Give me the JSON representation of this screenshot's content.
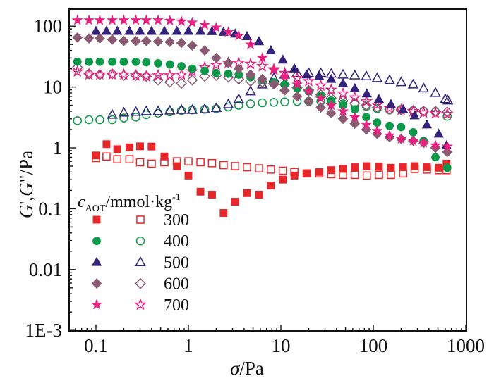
{
  "chart_data": {
    "type": "scatter",
    "title": "",
    "xlabel": "σ/Pa",
    "xlabel_parts": {
      "symbol": "σ",
      "unit": "/Pa"
    },
    "ylabel": "G′,G″/Pa",
    "ylabel_parts": {
      "g1": "G",
      "p1": "'",
      "comma": ",",
      "g2": "G",
      "p2": "\"",
      "unit": "/Pa"
    },
    "xscale": "log",
    "yscale": "log",
    "xlim": [
      0.055,
      1000
    ],
    "ylim": [
      0.001,
      200
    ],
    "xticks": [
      0.1,
      1,
      10,
      100,
      1000
    ],
    "xtick_labels": [
      "0.1",
      "1",
      "10",
      "100",
      "1000"
    ],
    "yticks": [
      0.001,
      0.01,
      0.1,
      1,
      10,
      100
    ],
    "ytick_labels": [
      "1E-3",
      "0.01",
      "0.1",
      "1",
      "10",
      "100"
    ],
    "grid": false,
    "legend": {
      "placement": "lower-left",
      "title_main": "c",
      "title_sub": "AOT",
      "title_unit": "/mmol·kg",
      "title_sup": "-1",
      "entries": [
        "300",
        "400",
        "500",
        "600",
        "700"
      ]
    },
    "series": [
      {
        "name": "G' 300",
        "concentration": "300",
        "modulus": "G'",
        "marker": "square",
        "filled": true,
        "color": "#e8272a",
        "x": [
          0.1,
          0.13,
          0.17,
          0.23,
          0.3,
          0.4,
          0.55,
          0.75,
          1.0,
          1.35,
          1.8,
          2.4,
          3.2,
          4.3,
          5.8,
          7.8,
          10.5,
          14,
          19,
          26,
          35,
          47,
          63,
          85,
          115,
          155,
          210,
          280,
          380,
          510,
          620
        ],
        "y": [
          0.75,
          1.15,
          0.95,
          1.02,
          1.06,
          1.05,
          0.72,
          0.5,
          0.35,
          0.19,
          0.17,
          0.085,
          0.13,
          0.18,
          0.17,
          0.24,
          0.3,
          0.35,
          0.38,
          0.4,
          0.43,
          0.45,
          0.48,
          0.5,
          0.49,
          0.47,
          0.48,
          0.5,
          0.48,
          0.47,
          0.55
        ]
      },
      {
        "name": "G'' 300",
        "concentration": "300",
        "modulus": "G\"",
        "marker": "square",
        "filled": false,
        "color": "#e8272a",
        "x": [
          0.1,
          0.13,
          0.17,
          0.23,
          0.3,
          0.4,
          0.55,
          0.75,
          1.0,
          1.35,
          1.8,
          2.4,
          3.2,
          4.3,
          5.8,
          7.8,
          10.5,
          14,
          19,
          26,
          35,
          47,
          63,
          85,
          115,
          155,
          210,
          280,
          380,
          510,
          620
        ],
        "y": [
          0.68,
          0.72,
          0.65,
          0.65,
          0.58,
          0.55,
          0.58,
          0.6,
          0.6,
          0.58,
          0.56,
          0.52,
          0.5,
          0.48,
          0.46,
          0.44,
          0.42,
          0.4,
          0.38,
          0.38,
          0.37,
          0.36,
          0.36,
          0.35,
          0.36,
          0.36,
          0.38,
          0.45,
          0.44,
          0.43,
          0.43
        ]
      },
      {
        "name": "G' 400",
        "concentration": "400",
        "modulus": "G'",
        "marker": "circle",
        "filled": true,
        "color": "#0c9a4a",
        "x": [
          0.063,
          0.084,
          0.11,
          0.15,
          0.2,
          0.27,
          0.35,
          0.47,
          0.63,
          0.84,
          1.1,
          1.5,
          2.0,
          2.7,
          3.5,
          4.7,
          6.3,
          8.4,
          11,
          15,
          20,
          27,
          35,
          47,
          63,
          84,
          110,
          150,
          200,
          270,
          350,
          470,
          630
        ],
        "y": [
          26,
          26,
          26,
          26,
          26,
          26,
          25.5,
          24.5,
          23.5,
          22,
          20,
          18.5,
          17,
          16.5,
          16,
          14.5,
          13,
          12,
          11,
          9.5,
          8.5,
          7.2,
          6,
          5,
          4.3,
          3.2,
          2.6,
          2.3,
          2.2,
          1.8,
          1.3,
          0.7,
          0.47
        ]
      },
      {
        "name": "G'' 400",
        "concentration": "400",
        "modulus": "G\"",
        "marker": "circle",
        "filled": false,
        "color": "#0c9a4a",
        "x": [
          0.063,
          0.084,
          0.11,
          0.15,
          0.2,
          0.27,
          0.35,
          0.47,
          0.63,
          0.84,
          1.1,
          1.5,
          2.0,
          2.7,
          3.5,
          4.7,
          6.3,
          8.4,
          11,
          15,
          20,
          27,
          35,
          47,
          63,
          84,
          110,
          150,
          200,
          270,
          350,
          470,
          630
        ],
        "y": [
          2.8,
          2.9,
          2.9,
          2.9,
          3.1,
          3.2,
          3.5,
          3.7,
          3.9,
          4.1,
          4.2,
          4.3,
          4.4,
          4.7,
          5.0,
          5.3,
          5.5,
          5.6,
          5.7,
          5.8,
          5.8,
          5.8,
          5.6,
          5.3,
          5.2,
          4.8,
          4.4,
          4.2,
          4.3,
          4.1,
          4.0,
          3.9,
          3.3
        ]
      },
      {
        "name": "G' 500",
        "concentration": "500",
        "modulus": "G'",
        "marker": "triangle",
        "filled": true,
        "color": "#33217a",
        "x": [
          0.1,
          0.13,
          0.17,
          0.23,
          0.3,
          0.4,
          0.55,
          0.75,
          1.0,
          1.35,
          1.8,
          2.4,
          3.2,
          4.3,
          5.8,
          7.8,
          10.5,
          14,
          19,
          26,
          35,
          47,
          63,
          85,
          115,
          155,
          210,
          280,
          380,
          510,
          620
        ],
        "y": [
          83,
          83,
          83,
          83,
          83,
          83,
          83,
          83,
          83,
          83,
          82,
          80,
          75,
          68,
          56,
          40,
          28,
          20,
          16,
          15,
          13.5,
          11.5,
          9.5,
          7.8,
          6.3,
          5.2,
          4.3,
          3.4,
          2.4,
          1.7,
          1.1
        ]
      },
      {
        "name": "G'' 500",
        "concentration": "500",
        "modulus": "G\"",
        "marker": "triangle",
        "filled": false,
        "color": "#33217a",
        "x": [
          0.15,
          0.2,
          0.27,
          0.35,
          0.47,
          0.63,
          0.84,
          1.1,
          1.5,
          2.0,
          2.7,
          3.5,
          4.7,
          6.3,
          8.4,
          11,
          15,
          20,
          27,
          35,
          47,
          63,
          84,
          110,
          150,
          200,
          270,
          350,
          470,
          600,
          640
        ],
        "y": [
          3.5,
          3.8,
          3.9,
          4.0,
          4.0,
          4.1,
          4.2,
          4.2,
          4.3,
          4.5,
          5.2,
          6.3,
          8.5,
          11,
          14,
          16,
          17,
          17,
          17,
          16.5,
          16,
          15.5,
          15,
          14,
          13,
          12,
          11,
          9.5,
          8,
          6.3,
          6.0
        ]
      },
      {
        "name": "G' 600",
        "concentration": "600",
        "modulus": "G'",
        "marker": "diamond",
        "filled": true,
        "color": "#8a5a72",
        "x": [
          0.063,
          0.084,
          0.11,
          0.15,
          0.2,
          0.27,
          0.35,
          0.47,
          0.63,
          0.84,
          1.1,
          1.5,
          2.0,
          2.7,
          3.5,
          4.7,
          6.3,
          8.4,
          11,
          15,
          20,
          27,
          35,
          47,
          63,
          84,
          110,
          150,
          200,
          270,
          350,
          470,
          630
        ],
        "y": [
          65,
          63,
          63,
          60,
          57,
          57,
          57,
          56,
          55,
          53,
          48,
          40,
          30,
          25,
          20,
          16,
          13.5,
          11,
          8.8,
          7,
          5.8,
          4.6,
          3.7,
          3.0,
          2.5,
          2.0,
          1.7,
          1.5,
          1.4,
          1.3,
          1.2,
          1.0,
          0.85
        ]
      },
      {
        "name": "G'' 600",
        "concentration": "600",
        "modulus": "G\"",
        "marker": "diamond",
        "filled": false,
        "color": "#8a5a72",
        "x": [
          0.063,
          0.084,
          0.11,
          0.15,
          0.2,
          0.27,
          0.35,
          0.47,
          0.63,
          0.84,
          1.1,
          1.5,
          2.0,
          2.7,
          3.5,
          4.7,
          6.3,
          8.4,
          11,
          15,
          20,
          27,
          35,
          47,
          63,
          84,
          110,
          150,
          200,
          270,
          350,
          470,
          630
        ],
        "y": [
          21,
          16.5,
          16,
          16.5,
          15.5,
          15.5,
          15,
          13,
          12,
          11.5,
          13,
          15,
          15.5,
          14.5,
          13.5,
          12.5,
          12,
          11.5,
          11,
          9.8,
          8.8,
          7.5,
          6.6,
          5.9,
          5.4,
          5.0,
          4.6,
          4.3,
          4.2,
          4.1,
          4.0,
          4.0,
          3.9
        ]
      },
      {
        "name": "G' 700",
        "concentration": "700",
        "modulus": "G'",
        "marker": "star",
        "filled": true,
        "color": "#e8207f",
        "x": [
          0.063,
          0.084,
          0.11,
          0.15,
          0.2,
          0.27,
          0.35,
          0.47,
          0.63,
          0.84,
          1.1,
          1.5,
          2.0,
          2.7,
          3.5,
          4.7,
          6.3,
          8.4,
          11,
          15,
          20,
          27,
          35,
          47,
          63,
          84,
          110,
          150,
          200,
          270,
          350,
          470,
          630
        ],
        "y": [
          125,
          125,
          125,
          125,
          125,
          125,
          125,
          125,
          123,
          120,
          115,
          105,
          95,
          80,
          70,
          50,
          30,
          19,
          15,
          11,
          8.5,
          6.5,
          5.0,
          4.0,
          3.2,
          2.4,
          1.9,
          1.6,
          1.4,
          1.3,
          1.2,
          1.1,
          1.05
        ]
      },
      {
        "name": "G'' 700",
        "concentration": "700",
        "modulus": "G\"",
        "marker": "star",
        "filled": false,
        "color": "#e8207f",
        "x": [
          0.063,
          0.084,
          0.11,
          0.15,
          0.2,
          0.27,
          0.35,
          0.47,
          0.63,
          0.84,
          1.1,
          1.5,
          2.0,
          2.7,
          3.5,
          4.7,
          6.3,
          8.4,
          11,
          15,
          20,
          27,
          35,
          47,
          63,
          84,
          110,
          150,
          200,
          270,
          350,
          470,
          630
        ],
        "y": [
          18,
          16,
          16,
          16,
          16,
          15.5,
          15,
          15.5,
          15.5,
          16,
          18,
          21,
          23,
          25,
          25,
          24,
          22,
          19.5,
          17,
          14,
          12.5,
          10.5,
          9.0,
          7.8,
          6.7,
          5.8,
          5.1,
          4.5,
          4.2,
          4.0,
          3.8,
          3.7,
          3.6
        ]
      }
    ]
  }
}
